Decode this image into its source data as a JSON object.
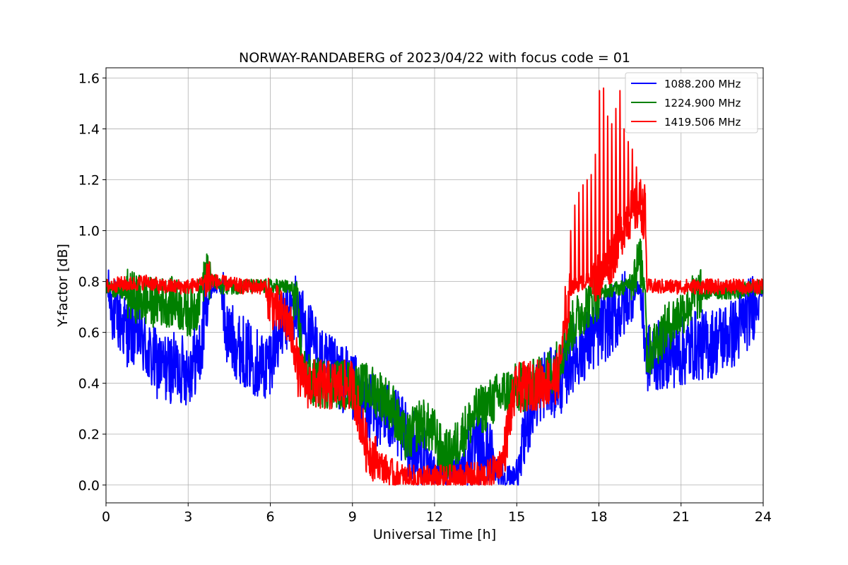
{
  "chart_data": {
    "type": "line",
    "title": "NORWAY-RANDABERG of 2023/04/22 with focus code = 01",
    "xlabel": "Universal Time [h]",
    "ylabel": "Y-factor [dB]",
    "xlim": [
      0,
      24
    ],
    "ylim": [
      -0.07,
      1.64
    ],
    "xticks": [
      0,
      3,
      6,
      9,
      12,
      15,
      18,
      21,
      24
    ],
    "xtick_labels": [
      "0",
      "3",
      "6",
      "9",
      "12",
      "15",
      "18",
      "21",
      "24"
    ],
    "yticks": [
      0.0,
      0.2,
      0.4,
      0.6,
      0.8,
      1.0,
      1.2,
      1.4,
      1.6
    ],
    "ytick_labels": [
      "0.0",
      "0.2",
      "0.4",
      "0.6",
      "0.8",
      "1.0",
      "1.2",
      "1.4",
      "1.6"
    ],
    "grid": true,
    "legend_position": "top-right",
    "series": [
      {
        "name": "1088.200 MHz",
        "color": "#0000ff",
        "profile": [
          [
            0,
            0.78
          ],
          [
            0.3,
            0.68
          ],
          [
            0.8,
            0.6
          ],
          [
            1.2,
            0.6
          ],
          [
            1.6,
            0.5
          ],
          [
            2.0,
            0.46
          ],
          [
            2.6,
            0.46
          ],
          [
            3.0,
            0.45
          ],
          [
            3.3,
            0.5
          ],
          [
            3.5,
            0.52
          ],
          [
            3.6,
            0.7
          ],
          [
            3.9,
            0.78
          ],
          [
            4.2,
            0.78
          ],
          [
            4.4,
            0.6
          ],
          [
            4.8,
            0.55
          ],
          [
            5.3,
            0.5
          ],
          [
            5.8,
            0.46
          ],
          [
            6.0,
            0.5
          ],
          [
            6.3,
            0.6
          ],
          [
            6.7,
            0.68
          ],
          [
            7.0,
            0.7
          ],
          [
            7.3,
            0.6
          ],
          [
            7.6,
            0.55
          ],
          [
            7.9,
            0.47
          ],
          [
            8.3,
            0.44
          ],
          [
            8.8,
            0.41
          ],
          [
            9.0,
            0.4
          ],
          [
            9.3,
            0.32
          ],
          [
            9.7,
            0.3
          ],
          [
            10.2,
            0.28
          ],
          [
            10.6,
            0.24
          ],
          [
            11.0,
            0.18
          ],
          [
            11.5,
            0.12
          ],
          [
            12.0,
            0.06
          ],
          [
            12.5,
            0.06
          ],
          [
            13.0,
            0.08
          ],
          [
            13.5,
            0.14
          ],
          [
            14.0,
            0.12
          ],
          [
            14.4,
            0.04
          ],
          [
            14.8,
            0.02
          ],
          [
            15.1,
            0.06
          ],
          [
            15.4,
            0.25
          ],
          [
            15.7,
            0.35
          ],
          [
            16.0,
            0.4
          ],
          [
            16.3,
            0.4
          ],
          [
            16.7,
            0.42
          ],
          [
            17.0,
            0.5
          ],
          [
            17.5,
            0.55
          ],
          [
            18.0,
            0.6
          ],
          [
            18.5,
            0.65
          ],
          [
            19.0,
            0.72
          ],
          [
            19.5,
            0.78
          ],
          [
            19.75,
            0.5
          ],
          [
            20.0,
            0.5
          ],
          [
            20.5,
            0.52
          ],
          [
            21.0,
            0.52
          ],
          [
            21.5,
            0.55
          ],
          [
            22.0,
            0.55
          ],
          [
            22.5,
            0.58
          ],
          [
            23.0,
            0.6
          ],
          [
            23.5,
            0.68
          ],
          [
            24.0,
            0.78
          ]
        ]
      },
      {
        "name": "1224.900 MHz",
        "color": "#008000",
        "profile": [
          [
            0,
            0.78
          ],
          [
            0.5,
            0.76
          ],
          [
            1.0,
            0.74
          ],
          [
            1.5,
            0.72
          ],
          [
            2.0,
            0.72
          ],
          [
            2.5,
            0.72
          ],
          [
            3.0,
            0.68
          ],
          [
            3.3,
            0.7
          ],
          [
            3.6,
            0.83
          ],
          [
            3.9,
            0.8
          ],
          [
            4.2,
            0.78
          ],
          [
            5.0,
            0.78
          ],
          [
            6.0,
            0.78
          ],
          [
            6.5,
            0.78
          ],
          [
            6.8,
            0.77
          ],
          [
            7.0,
            0.68
          ],
          [
            7.2,
            0.45
          ],
          [
            7.5,
            0.4
          ],
          [
            8.0,
            0.4
          ],
          [
            8.5,
            0.4
          ],
          [
            9.0,
            0.39
          ],
          [
            9.5,
            0.38
          ],
          [
            10.0,
            0.36
          ],
          [
            10.5,
            0.3
          ],
          [
            10.8,
            0.2
          ],
          [
            11.0,
            0.18
          ],
          [
            11.5,
            0.25
          ],
          [
            12.0,
            0.2
          ],
          [
            12.3,
            0.12
          ],
          [
            12.6,
            0.12
          ],
          [
            13.0,
            0.2
          ],
          [
            13.5,
            0.28
          ],
          [
            14.0,
            0.32
          ],
          [
            14.5,
            0.36
          ],
          [
            15.0,
            0.38
          ],
          [
            15.5,
            0.39
          ],
          [
            16.0,
            0.42
          ],
          [
            16.5,
            0.48
          ],
          [
            17.0,
            0.62
          ],
          [
            17.5,
            0.7
          ],
          [
            18.0,
            0.75
          ],
          [
            18.5,
            0.77
          ],
          [
            19.0,
            0.78
          ],
          [
            19.5,
            0.88
          ],
          [
            19.7,
            0.78
          ],
          [
            19.75,
            0.5
          ],
          [
            20.0,
            0.55
          ],
          [
            20.5,
            0.62
          ],
          [
            21.0,
            0.68
          ],
          [
            21.5,
            0.74
          ],
          [
            22.0,
            0.76
          ],
          [
            22.5,
            0.76
          ],
          [
            23.0,
            0.76
          ],
          [
            24.0,
            0.78
          ]
        ]
      },
      {
        "name": "1419.506 MHz",
        "color": "#ff0000",
        "profile": [
          [
            0,
            0.78
          ],
          [
            0.5,
            0.79
          ],
          [
            1.0,
            0.79
          ],
          [
            1.5,
            0.8
          ],
          [
            2.0,
            0.78
          ],
          [
            3.0,
            0.78
          ],
          [
            3.5,
            0.79
          ],
          [
            3.7,
            0.82
          ],
          [
            4.0,
            0.8
          ],
          [
            4.5,
            0.79
          ],
          [
            5.0,
            0.78
          ],
          [
            5.8,
            0.78
          ],
          [
            6.0,
            0.72
          ],
          [
            6.3,
            0.68
          ],
          [
            6.6,
            0.65
          ],
          [
            6.9,
            0.55
          ],
          [
            7.0,
            0.45
          ],
          [
            7.3,
            0.4
          ],
          [
            8.0,
            0.39
          ],
          [
            8.5,
            0.39
          ],
          [
            9.0,
            0.39
          ],
          [
            9.2,
            0.3
          ],
          [
            9.5,
            0.15
          ],
          [
            10.0,
            0.08
          ],
          [
            10.5,
            0.04
          ],
          [
            11.0,
            0.02
          ],
          [
            11.5,
            0.02
          ],
          [
            12.0,
            0.02
          ],
          [
            12.5,
            0.02
          ],
          [
            13.0,
            0.03
          ],
          [
            13.5,
            0.03
          ],
          [
            14.0,
            0.04
          ],
          [
            14.5,
            0.1
          ],
          [
            14.8,
            0.3
          ],
          [
            15.0,
            0.38
          ],
          [
            15.5,
            0.39
          ],
          [
            16.0,
            0.4
          ],
          [
            16.5,
            0.42
          ],
          [
            16.8,
            0.65
          ],
          [
            17.0,
            0.78
          ],
          [
            17.5,
            0.8
          ],
          [
            18.0,
            0.82
          ],
          [
            18.5,
            0.9
          ],
          [
            19.0,
            1.05
          ],
          [
            19.5,
            1.1
          ],
          [
            19.7,
            1.05
          ],
          [
            19.75,
            0.78
          ],
          [
            20.0,
            0.78
          ],
          [
            21.0,
            0.78
          ],
          [
            22.0,
            0.78
          ],
          [
            23.0,
            0.78
          ],
          [
            24.0,
            0.78
          ]
        ],
        "spikes": [
          [
            16.75,
            0.78
          ],
          [
            16.95,
            1.0
          ],
          [
            17.1,
            1.1
          ],
          [
            17.25,
            1.15
          ],
          [
            17.4,
            1.18
          ],
          [
            17.55,
            1.2
          ],
          [
            17.7,
            1.22
          ],
          [
            17.85,
            1.3
          ],
          [
            18.0,
            1.55
          ],
          [
            18.15,
            1.56
          ],
          [
            18.3,
            1.45
          ],
          [
            18.45,
            1.42
          ],
          [
            18.6,
            1.48
          ],
          [
            18.75,
            1.55
          ],
          [
            18.9,
            1.4
          ],
          [
            19.05,
            1.35
          ],
          [
            19.2,
            1.32
          ],
          [
            19.35,
            1.25
          ],
          [
            19.5,
            1.2
          ],
          [
            19.65,
            1.18
          ]
        ]
      }
    ]
  }
}
